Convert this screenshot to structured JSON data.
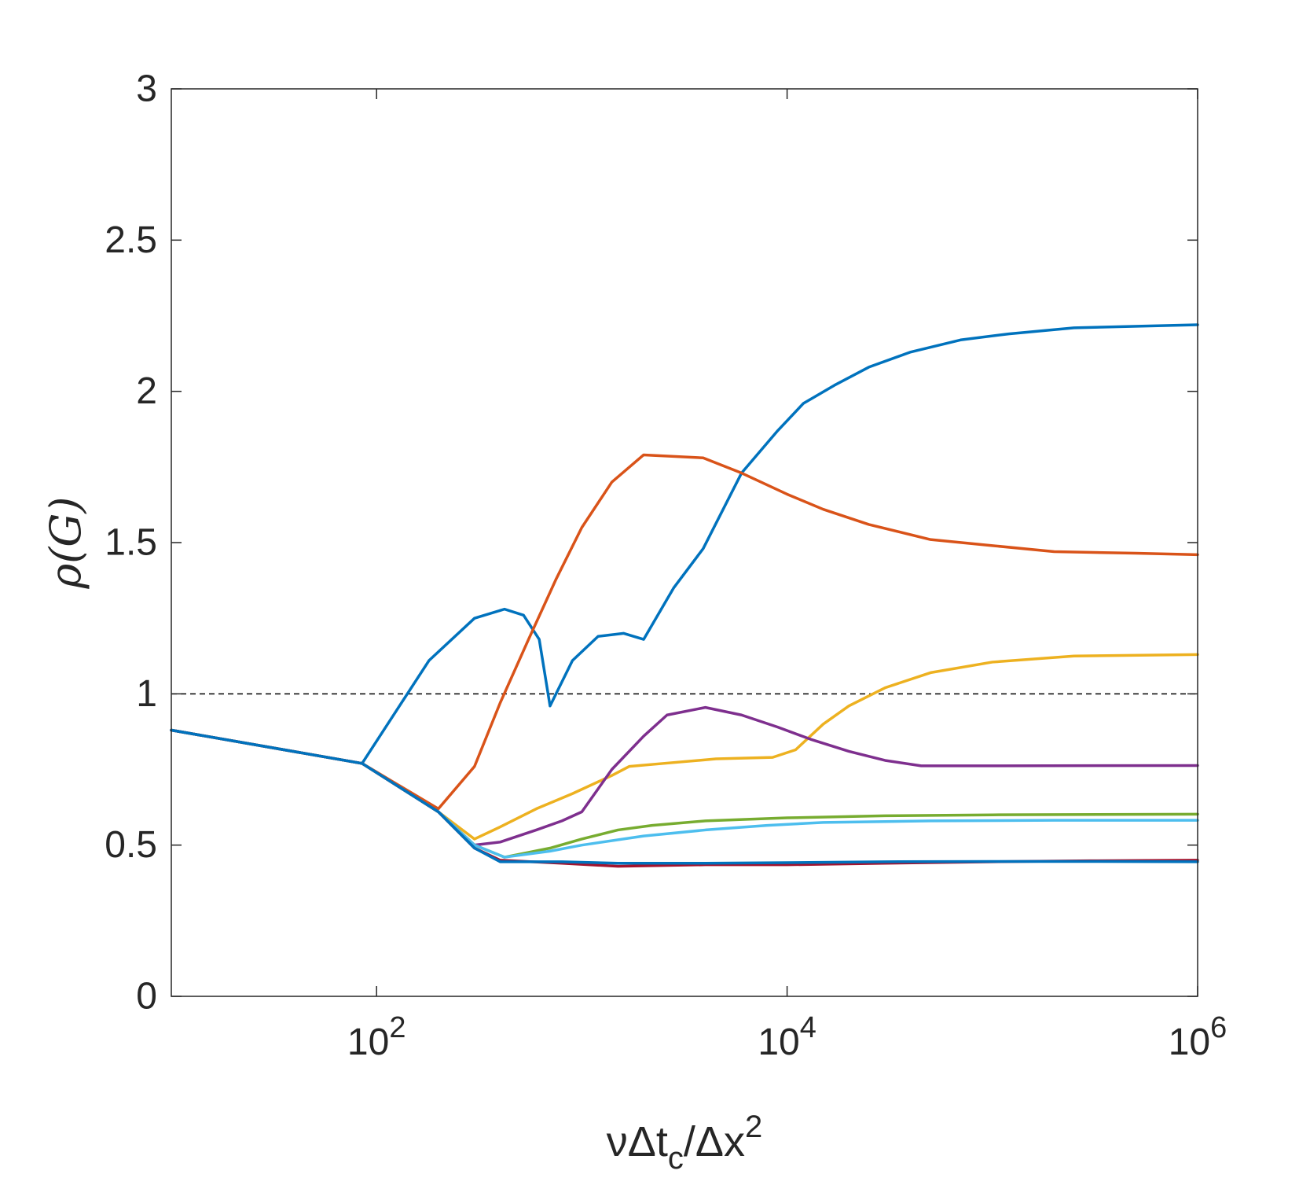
{
  "chart_data": {
    "type": "line",
    "title": "",
    "xlabel": "νΔt_c/Δx^2",
    "ylabel": "ρ(G)",
    "xscale": "log",
    "xlim": [
      10,
      1000000
    ],
    "ylim": [
      0,
      3
    ],
    "grid": false,
    "x_ticks": [
      100,
      10000,
      1000000
    ],
    "x_tick_labels": [
      {
        "base": "10",
        "exp": "2"
      },
      {
        "base": "10",
        "exp": "4"
      },
      {
        "base": "10",
        "exp": "6"
      }
    ],
    "y_ticks": [
      0,
      0.5,
      1,
      1.5,
      2,
      2.5,
      3
    ],
    "y_tick_labels": [
      "0",
      "0.5",
      "1",
      "1.5",
      "2",
      "2.5",
      "3"
    ],
    "reference_line": {
      "y": 1,
      "style": "dashed",
      "color": "#000000"
    },
    "series": [
      {
        "color": "#0072BD",
        "points": [
          [
            10,
            0.88
          ],
          [
            85,
            0.77
          ],
          [
            180,
            1.11
          ],
          [
            300,
            1.25
          ],
          [
            420,
            1.28
          ],
          [
            520,
            1.26
          ],
          [
            620,
            1.18
          ],
          [
            700,
            0.96
          ],
          [
            900,
            1.11
          ],
          [
            1200,
            1.19
          ],
          [
            1600,
            1.2
          ],
          [
            2000,
            1.18
          ],
          [
            2800,
            1.35
          ],
          [
            3900,
            1.48
          ],
          [
            6000,
            1.73
          ],
          [
            9000,
            1.87
          ],
          [
            12000,
            1.96
          ],
          [
            17000,
            2.02
          ],
          [
            25000,
            2.08
          ],
          [
            40000,
            2.13
          ],
          [
            70000,
            2.17
          ],
          [
            120000,
            2.19
          ],
          [
            250000,
            2.21
          ],
          [
            1000000,
            2.22
          ]
        ]
      },
      {
        "color": "#D95319",
        "points": [
          [
            10,
            0.88
          ],
          [
            85,
            0.77
          ],
          [
            200,
            0.62
          ],
          [
            300,
            0.76
          ],
          [
            400,
            0.97
          ],
          [
            550,
            1.18
          ],
          [
            750,
            1.38
          ],
          [
            1000,
            1.55
          ],
          [
            1400,
            1.7
          ],
          [
            2000,
            1.79
          ],
          [
            3900,
            1.78
          ],
          [
            6000,
            1.73
          ],
          [
            10000,
            1.66
          ],
          [
            15000,
            1.61
          ],
          [
            25000,
            1.56
          ],
          [
            50000,
            1.51
          ],
          [
            100000,
            1.49
          ],
          [
            200000,
            1.47
          ],
          [
            500000,
            1.465
          ],
          [
            1000000,
            1.46
          ]
        ]
      },
      {
        "color": "#EDB120",
        "points": [
          [
            10,
            0.88
          ],
          [
            85,
            0.77
          ],
          [
            200,
            0.61
          ],
          [
            300,
            0.52
          ],
          [
            400,
            0.56
          ],
          [
            600,
            0.62
          ],
          [
            900,
            0.67
          ],
          [
            1400,
            0.73
          ],
          [
            1700,
            0.76
          ],
          [
            2500,
            0.77
          ],
          [
            4500,
            0.785
          ],
          [
            8500,
            0.79
          ],
          [
            11000,
            0.815
          ],
          [
            15000,
            0.9
          ],
          [
            20000,
            0.96
          ],
          [
            30000,
            1.02
          ],
          [
            50000,
            1.07
          ],
          [
            100000,
            1.105
          ],
          [
            250000,
            1.125
          ],
          [
            1000000,
            1.13
          ]
        ]
      },
      {
        "color": "#7E2F8E",
        "points": [
          [
            10,
            0.88
          ],
          [
            85,
            0.77
          ],
          [
            200,
            0.61
          ],
          [
            300,
            0.5
          ],
          [
            400,
            0.51
          ],
          [
            600,
            0.55
          ],
          [
            800,
            0.58
          ],
          [
            1000,
            0.61
          ],
          [
            1400,
            0.75
          ],
          [
            2000,
            0.86
          ],
          [
            2600,
            0.93
          ],
          [
            4000,
            0.955
          ],
          [
            6000,
            0.93
          ],
          [
            9000,
            0.89
          ],
          [
            13000,
            0.85
          ],
          [
            20000,
            0.81
          ],
          [
            30000,
            0.78
          ],
          [
            45000,
            0.762
          ],
          [
            100000,
            0.762
          ],
          [
            1000000,
            0.763
          ]
        ]
      },
      {
        "color": "#77AC30",
        "points": [
          [
            10,
            0.88
          ],
          [
            85,
            0.77
          ],
          [
            200,
            0.61
          ],
          [
            300,
            0.5
          ],
          [
            420,
            0.46
          ],
          [
            700,
            0.49
          ],
          [
            1000,
            0.52
          ],
          [
            1500,
            0.55
          ],
          [
            2200,
            0.565
          ],
          [
            4000,
            0.58
          ],
          [
            10000,
            0.59
          ],
          [
            30000,
            0.597
          ],
          [
            100000,
            0.6
          ],
          [
            1000000,
            0.602
          ]
        ]
      },
      {
        "color": "#4DBEEE",
        "points": [
          [
            10,
            0.88
          ],
          [
            85,
            0.77
          ],
          [
            200,
            0.61
          ],
          [
            300,
            0.5
          ],
          [
            420,
            0.46
          ],
          [
            700,
            0.48
          ],
          [
            1000,
            0.5
          ],
          [
            2000,
            0.53
          ],
          [
            4000,
            0.55
          ],
          [
            8000,
            0.565
          ],
          [
            15000,
            0.575
          ],
          [
            50000,
            0.58
          ],
          [
            200000,
            0.582
          ],
          [
            1000000,
            0.582
          ]
        ]
      },
      {
        "color": "#A2142F",
        "points": [
          [
            10,
            0.88
          ],
          [
            85,
            0.77
          ],
          [
            200,
            0.61
          ],
          [
            300,
            0.49
          ],
          [
            400,
            0.45
          ],
          [
            800,
            0.44
          ],
          [
            1500,
            0.43
          ],
          [
            4000,
            0.435
          ],
          [
            10000,
            0.435
          ],
          [
            30000,
            0.44
          ],
          [
            100000,
            0.445
          ],
          [
            300000,
            0.448
          ],
          [
            1000000,
            0.45
          ]
        ]
      },
      {
        "color": "#0072BD",
        "points": [
          [
            10,
            0.88
          ],
          [
            85,
            0.77
          ],
          [
            200,
            0.61
          ],
          [
            300,
            0.49
          ],
          [
            400,
            0.445
          ],
          [
            800,
            0.445
          ],
          [
            1500,
            0.44
          ],
          [
            4000,
            0.44
          ],
          [
            10000,
            0.442
          ],
          [
            30000,
            0.445
          ],
          [
            100000,
            0.446
          ],
          [
            300000,
            0.446
          ],
          [
            1000000,
            0.445
          ]
        ]
      }
    ]
  }
}
